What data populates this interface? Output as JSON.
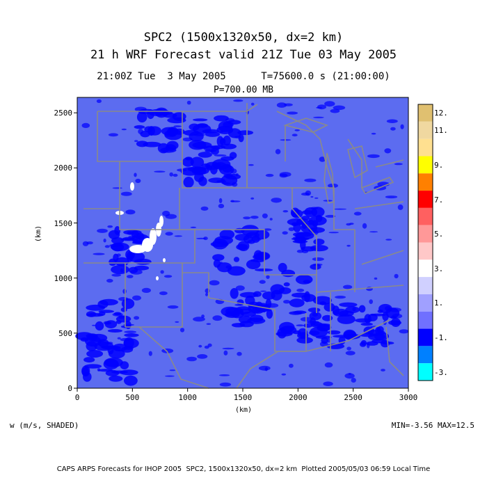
{
  "titles": {
    "line1": "SPC2 (1500x1320x50, dx=2 km)",
    "line2": "21 h WRF Forecast valid 21Z Tue 03 May 2005",
    "line3": "21:00Z Tue  3 May 2005      T=75600.0 s (21:00:00)",
    "line4": "P=700.00 MB"
  },
  "axes": {
    "x_label": "(km)",
    "y_label": "(km)",
    "x_ticks": [
      "0",
      "500",
      "1000",
      "1500",
      "2000",
      "2500",
      "3000"
    ],
    "y_ticks": [
      "0",
      "500",
      "1000",
      "1500",
      "2000",
      "2500"
    ],
    "x_range": [
      0,
      3000
    ],
    "y_range": [
      0,
      2640
    ]
  },
  "field_label": "w (m/s, SHADED)",
  "min_max": "MIN=-3.56 MAX=12.5",
  "footer": "CAPS ARPS Forecasts for IHOP 2005  SPC2, 1500x1320x50, dx=2 km  Plotted 2005/05/03 06:59 Local Time",
  "colorbar": {
    "labels_top_to_bottom": [
      "12.",
      "11.",
      "9.",
      "7.",
      "5.",
      "3.",
      "1.",
      "-1.",
      "-3."
    ],
    "colors_top_to_bottom": [
      "#e0c070",
      "#f0d8a0",
      "#ffe090",
      "#ffff00",
      "#ff8000",
      "#ff0000",
      "#ff6060",
      "#ff9898",
      "#ffc8c8",
      "#ffffff",
      "#d0d0ff",
      "#a0a0ff",
      "#7070ff",
      "#0000ff",
      "#0080ff",
      "#00ffff"
    ]
  },
  "map": {
    "background_color": "#5c6cf0",
    "boundary_color": "#8a8a8a",
    "dark_blue": "#0000ff",
    "positive_color": "#ffffff"
  }
}
